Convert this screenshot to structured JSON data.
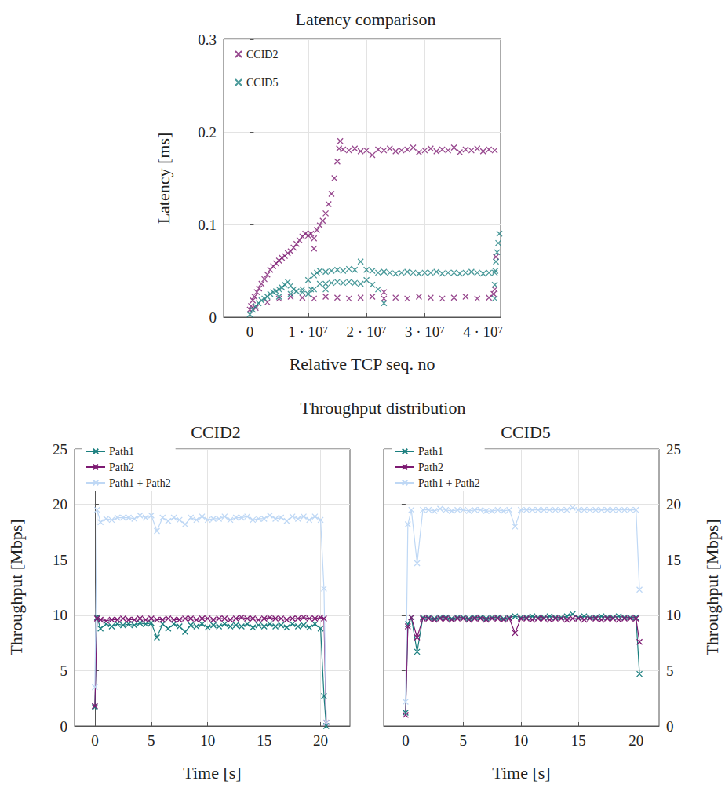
{
  "chart_data": [
    {
      "type": "scatter",
      "title": "Latency comparison",
      "x_label": "Relative TCP seq. no",
      "y_label": "Latency [ms]",
      "xlim": [
        -4500000,
        43000000
      ],
      "xticks": [
        0,
        {
          "value": 10000000,
          "label": "1 · 10⁷"
        },
        {
          "value": 20000000,
          "label": "2 · 10⁷"
        },
        {
          "value": 30000000,
          "label": "3 · 10⁷"
        },
        {
          "value": 40000000,
          "label": "4 · 10⁷"
        }
      ],
      "ylim": [
        0,
        0.3
      ],
      "yticks": [
        0,
        0.1,
        0.2,
        0.3
      ],
      "grid": true,
      "legend": "top-left",
      "series": [
        {
          "name": "CCID2",
          "color": "#7d1a72",
          "marker": "x",
          "x": [
            0,
            200000.0,
            500000.0,
            800000.0,
            1200000.0,
            1600000.0,
            2000000.0,
            2500000.0,
            3000000.0,
            3500000.0,
            4000000.0,
            4500000.0,
            5000000.0,
            5500000.0,
            6000000.0,
            6500000.0,
            7000000.0,
            7500000.0,
            8000000.0,
            8500000.0,
            9000000.0,
            9500000.0,
            10000000.0,
            10500000.0,
            11000000.0,
            11000000.0,
            11500000.0,
            12000000.0,
            12500000.0,
            13000000.0,
            13500000.0,
            14000000.0,
            14500000.0,
            15000000.0,
            15300000.0,
            15500000.0,
            16000000.0,
            17000000.0,
            18000000.0,
            19000000.0,
            20000000.0,
            21000000.0,
            22000000.0,
            23000000.0,
            24000000.0,
            25000000.0,
            26000000.0,
            27000000.0,
            28000000.0,
            29000000.0,
            30000000.0,
            31000000.0,
            32000000.0,
            33000000.0,
            34000000.0,
            35000000.0,
            36000000.0,
            37000000.0,
            38000000.0,
            39000000.0,
            40000000.0,
            41000000.0,
            42000000.0,
            1000000.0,
            3000000.0,
            5000000.0,
            7000000.0,
            9000000.0,
            11000000.0,
            13000000.0,
            15000000.0,
            17000000.0,
            19000000.0,
            21000000.0,
            23000000.0,
            25000000.0,
            27000000.0,
            29000000.0,
            31000000.0,
            33000000.0,
            35000000.0,
            37000000.0,
            39000000.0,
            41000000.0,
            23000000.0,
            41800000.0,
            42000000.0,
            42200000.0
          ],
          "values": [
            0.008,
            0.012,
            0.018,
            0.022,
            0.027,
            0.031,
            0.036,
            0.041,
            0.046,
            0.051,
            0.055,
            0.058,
            0.061,
            0.064,
            0.066,
            0.069,
            0.071,
            0.075,
            0.079,
            0.083,
            0.087,
            0.09,
            0.088,
            0.09,
            0.074,
            0.085,
            0.094,
            0.099,
            0.104,
            0.112,
            0.122,
            0.133,
            0.15,
            0.168,
            0.182,
            0.19,
            0.181,
            0.18,
            0.182,
            0.179,
            0.18,
            0.175,
            0.181,
            0.18,
            0.182,
            0.179,
            0.18,
            0.181,
            0.183,
            0.178,
            0.18,
            0.182,
            0.179,
            0.181,
            0.18,
            0.183,
            0.178,
            0.181,
            0.18,
            0.182,
            0.179,
            0.181,
            0.18,
            0.01,
            0.016,
            0.02,
            0.022,
            0.021,
            0.02,
            0.022,
            0.021,
            0.02,
            0.021,
            0.022,
            0.02,
            0.021,
            0.02,
            0.022,
            0.021,
            0.02,
            0.021,
            0.022,
            0.02,
            0.021,
            0.027,
            0.025,
            0.03,
            0.065
          ]
        },
        {
          "name": "CCID5",
          "color": "#1b7f7f",
          "marker": "x",
          "x": [
            0,
            500000.0,
            1000000.0,
            1500000.0,
            2000000.0,
            2500000.0,
            3000000.0,
            3500000.0,
            4000000.0,
            4500000.0,
            5000000.0,
            5500000.0,
            6000000.0,
            6500000.0,
            7000000.0,
            7500000.0,
            8000000.0,
            9000000.0,
            10000000.0,
            10000000.0,
            10500000.0,
            11000000.0,
            11500000.0,
            12000000.0,
            12000000.0,
            13000000.0,
            14000000.0,
            15000000.0,
            16000000.0,
            17000000.0,
            18000000.0,
            19000000.0,
            20000000.0,
            21000000.0,
            22000000.0,
            23000000.0,
            24000000.0,
            25000000.0,
            26000000.0,
            27000000.0,
            28000000.0,
            29000000.0,
            30000000.0,
            31000000.0,
            32000000.0,
            33000000.0,
            34000000.0,
            35000000.0,
            36000000.0,
            37000000.0,
            38000000.0,
            39000000.0,
            40000000.0,
            41000000.0,
            42000000.0,
            13000000.0,
            14000000.0,
            15000000.0,
            16000000.0,
            17000000.0,
            18000000.0,
            19000000.0,
            20000000.0,
            21000000.0,
            22000000.0,
            23000000.0,
            5000000.0,
            7000000.0,
            9000000.0,
            11000000.0,
            13000000.0,
            42000000.0,
            42000000.0,
            42100000.0,
            42200000.0,
            42400000.0,
            42600000.0,
            42800000.0
          ],
          "values": [
            0.003,
            0.008,
            0.012,
            0.015,
            0.018,
            0.02,
            0.022,
            0.025,
            0.027,
            0.028,
            0.03,
            0.032,
            0.035,
            0.038,
            0.034,
            0.03,
            0.028,
            0.03,
            0.025,
            0.04,
            0.03,
            0.045,
            0.048,
            0.036,
            0.05,
            0.049,
            0.05,
            0.051,
            0.05,
            0.052,
            0.051,
            0.06,
            0.051,
            0.05,
            0.048,
            0.049,
            0.048,
            0.047,
            0.048,
            0.049,
            0.048,
            0.047,
            0.048,
            0.048,
            0.049,
            0.047,
            0.048,
            0.048,
            0.047,
            0.048,
            0.049,
            0.048,
            0.047,
            0.048,
            0.048,
            0.036,
            0.037,
            0.038,
            0.037,
            0.038,
            0.037,
            0.036,
            0.04,
            0.035,
            0.03,
            0.015,
            0.022,
            0.025,
            0.027,
            0.03,
            0.03,
            0.02,
            0.035,
            0.05,
            0.06,
            0.07,
            0.08,
            0.09
          ]
        }
      ]
    },
    {
      "type": "line",
      "title": "CCID2",
      "annotations": [
        "Throughput distribution"
      ],
      "x_label": "Time [s]",
      "y_label": "Throughput [Mbps]",
      "xlim": [
        -1.8,
        22.6
      ],
      "xticks": [
        0,
        5,
        10,
        15,
        20
      ],
      "ylim": [
        0,
        25
      ],
      "yticks": [
        0,
        5,
        10,
        15,
        20,
        25
      ],
      "grid": true,
      "legend": "top-left",
      "x": [
        0,
        0.2,
        0.5,
        1,
        1.5,
        2,
        2.5,
        3,
        3.5,
        4,
        4.5,
        5,
        5.5,
        6,
        6.5,
        7,
        7.5,
        8,
        8.5,
        9,
        9.5,
        10,
        10.5,
        11,
        11.5,
        12,
        12.5,
        13,
        13.5,
        14,
        14.5,
        15,
        15.5,
        16,
        16.5,
        17,
        17.5,
        18,
        18.5,
        19,
        19.5,
        20,
        20.3,
        20.5
      ],
      "series": [
        {
          "name": "Path1",
          "color": "#1b7f7f",
          "marker": "x",
          "values": [
            1.7,
            9.8,
            8.8,
            9.2,
            9.0,
            9.2,
            9.1,
            9.2,
            9.1,
            9.3,
            9.2,
            9.3,
            8.0,
            9.2,
            8.8,
            9.2,
            9.0,
            8.5,
            9.1,
            9.0,
            9.2,
            8.9,
            9.1,
            9.0,
            9.2,
            9.0,
            9.1,
            9.0,
            9.2,
            8.9,
            9.1,
            9.0,
            9.2,
            9.0,
            9.1,
            8.9,
            9.2,
            9.0,
            9.1,
            8.9,
            9.2,
            8.8,
            2.7,
            0
          ]
        },
        {
          "name": "Path2",
          "color": "#7d1a72",
          "marker": "x",
          "values": [
            1.8,
            9.7,
            9.6,
            9.5,
            9.6,
            9.6,
            9.7,
            9.6,
            9.6,
            9.7,
            9.6,
            9.7,
            9.6,
            9.6,
            9.7,
            9.6,
            9.6,
            9.7,
            9.7,
            9.6,
            9.7,
            9.7,
            9.6,
            9.7,
            9.7,
            9.6,
            9.7,
            9.8,
            9.7,
            9.7,
            9.6,
            9.7,
            9.8,
            9.7,
            9.7,
            9.6,
            9.7,
            9.7,
            9.8,
            9.7,
            9.7,
            9.8,
            9.7,
            0.3
          ]
        },
        {
          "name": "Path1 + Path2",
          "color": "#bfd8f5",
          "marker": "x",
          "values": [
            3.5,
            19.5,
            18.4,
            18.7,
            18.6,
            18.8,
            18.8,
            18.8,
            18.7,
            19.0,
            18.8,
            19.0,
            17.6,
            18.8,
            18.5,
            18.8,
            18.6,
            18.2,
            18.8,
            18.6,
            18.9,
            18.6,
            18.7,
            18.7,
            18.9,
            18.6,
            18.8,
            18.8,
            18.9,
            18.6,
            18.7,
            18.7,
            19.0,
            18.7,
            18.8,
            18.5,
            18.9,
            18.7,
            18.9,
            18.6,
            18.9,
            18.6,
            12.4,
            0.3
          ]
        }
      ]
    },
    {
      "type": "line",
      "title": "CCID5",
      "x_label": "Time [s]",
      "y_label": "Throughput [Mbps]",
      "xlim": [
        -1.9,
        22
      ],
      "xticks": [
        0,
        5,
        10,
        15,
        20
      ],
      "ylim": [
        0,
        25
      ],
      "yticks": [
        0,
        5,
        10,
        15,
        20,
        25
      ],
      "grid": true,
      "legend": "top-left",
      "x": [
        0,
        0.2,
        0.5,
        1,
        1.5,
        2,
        2.5,
        3,
        3.5,
        4,
        4.5,
        5,
        5.5,
        6,
        6.5,
        7,
        7.5,
        8,
        8.5,
        9,
        9.5,
        10,
        10.5,
        11,
        11.5,
        12,
        12.5,
        13,
        13.5,
        14,
        14.5,
        15,
        15.5,
        16,
        16.5,
        17,
        17.5,
        18,
        18.5,
        19,
        19.5,
        20,
        20.3
      ],
      "series": [
        {
          "name": "Path1",
          "color": "#1b7f7f",
          "marker": "x",
          "values": [
            1.2,
            9.2,
            9.8,
            6.7,
            9.8,
            9.8,
            9.7,
            9.8,
            9.8,
            9.7,
            9.8,
            9.8,
            9.7,
            9.8,
            9.8,
            9.7,
            9.8,
            9.8,
            9.7,
            9.8,
            9.9,
            9.8,
            9.8,
            9.9,
            9.8,
            9.8,
            9.9,
            9.8,
            9.8,
            9.9,
            10.1,
            9.8,
            9.9,
            9.8,
            9.8,
            9.9,
            9.8,
            9.8,
            9.9,
            9.8,
            9.8,
            9.8,
            4.7
          ]
        },
        {
          "name": "Path2",
          "color": "#7d1a72",
          "marker": "x",
          "values": [
            1.0,
            9.0,
            9.8,
            8.0,
            9.7,
            9.7,
            9.6,
            9.7,
            9.7,
            9.6,
            9.7,
            9.7,
            9.6,
            9.7,
            9.7,
            9.6,
            9.7,
            9.7,
            9.6,
            9.7,
            8.4,
            9.7,
            9.7,
            9.6,
            9.7,
            9.7,
            9.6,
            9.7,
            9.7,
            9.6,
            9.7,
            9.7,
            9.6,
            9.7,
            9.7,
            9.6,
            9.7,
            9.7,
            9.6,
            9.7,
            9.7,
            9.7,
            7.6
          ]
        },
        {
          "name": "Path1 + Path2",
          "color": "#bfd8f5",
          "marker": "x",
          "values": [
            2.2,
            18.2,
            19.5,
            14.7,
            19.5,
            19.5,
            19.4,
            19.6,
            19.5,
            19.4,
            19.5,
            19.5,
            19.4,
            19.5,
            19.5,
            19.4,
            19.4,
            19.5,
            19.4,
            19.5,
            18.0,
            19.5,
            19.5,
            19.5,
            19.5,
            19.5,
            19.5,
            19.5,
            19.5,
            19.5,
            19.7,
            19.5,
            19.5,
            19.5,
            19.5,
            19.5,
            19.5,
            19.5,
            19.5,
            19.5,
            19.5,
            19.5,
            12.3
          ]
        }
      ]
    }
  ]
}
